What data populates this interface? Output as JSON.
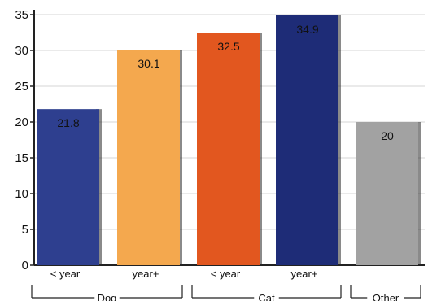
{
  "chart_data": {
    "type": "bar",
    "title": "",
    "xlabel": "",
    "ylabel": "",
    "ylim": [
      0,
      35
    ],
    "yticks": [
      0,
      5,
      10,
      15,
      20,
      25,
      30,
      35
    ],
    "grid": true,
    "categories": [
      "< year",
      "year+",
      "< year",
      "year+",
      ""
    ],
    "values": [
      21.8,
      30.1,
      32.5,
      34.9,
      20
    ],
    "value_labels": [
      "21.8",
      "30.1",
      "32.5",
      "34.9",
      "20"
    ],
    "colors": [
      "#2e3f8f",
      "#f4a84e",
      "#e2571f",
      "#1e2c77",
      "#a2a2a2"
    ],
    "groups": [
      {
        "label": "Dog",
        "bars": [
          0,
          1
        ]
      },
      {
        "label": "Cat",
        "bars": [
          2,
          3
        ]
      },
      {
        "label": "Other",
        "bars": [
          4
        ]
      }
    ]
  }
}
